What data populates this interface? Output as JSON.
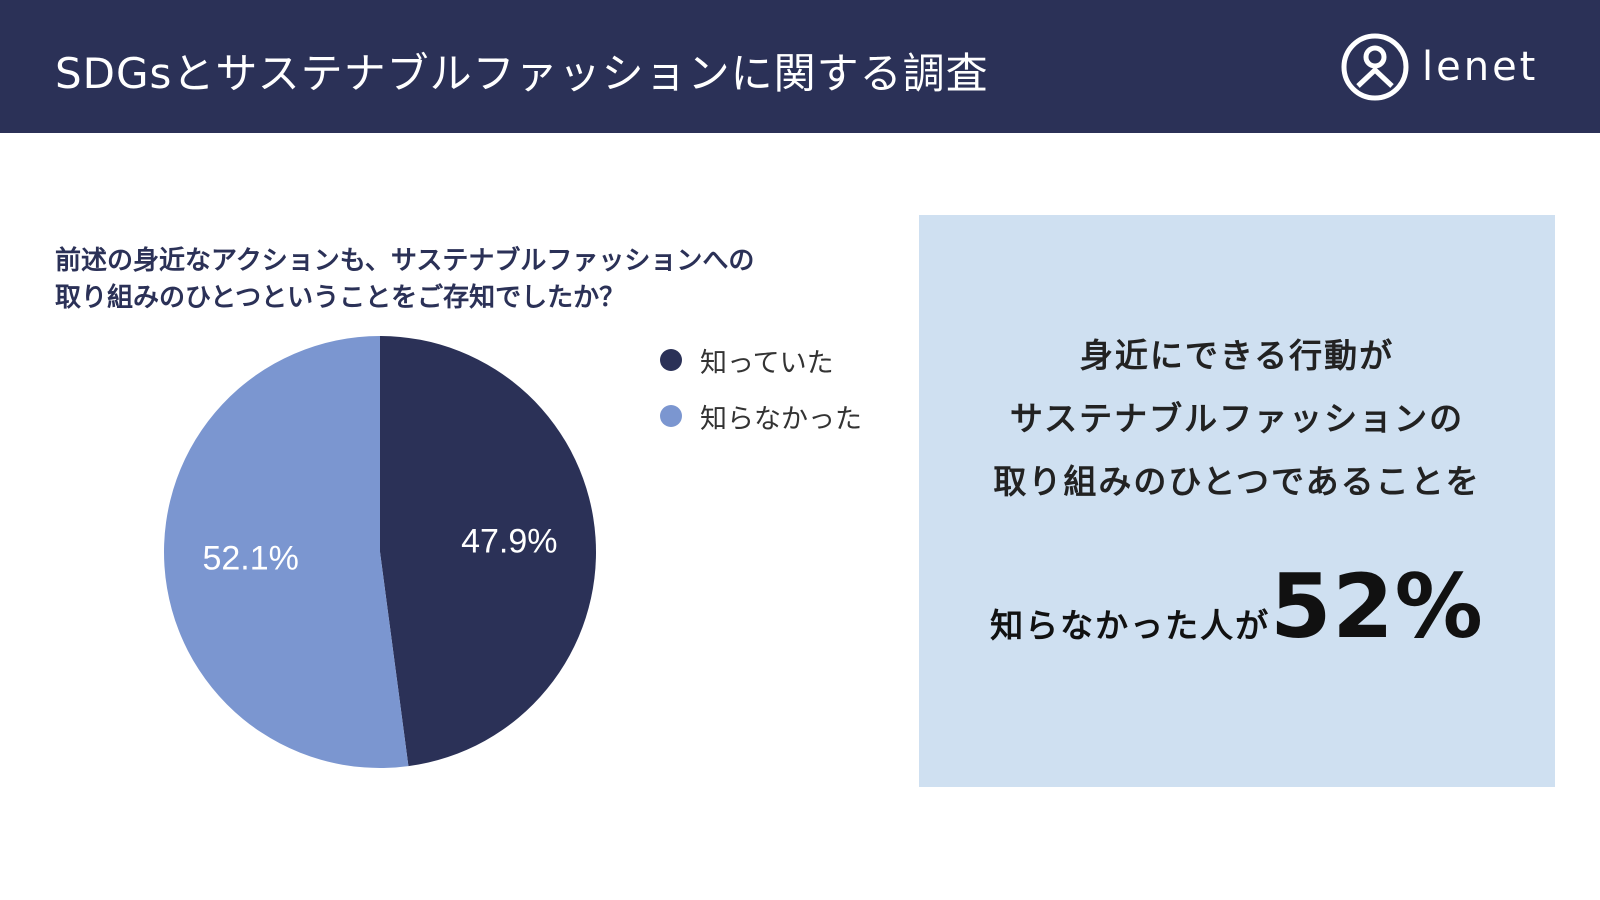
{
  "header": {
    "title": "SDGsとサステナブルファッションに関する調査",
    "logo_text": "lenet",
    "background_color": "#2b3157"
  },
  "question": {
    "line1": "前述の身近なアクションも、サステナブルファッションへの",
    "line2": "取り組みのひとつということをご存知でしたか？"
  },
  "chart_data": {
    "type": "pie",
    "title": "前述の身近なアクションも、サステナブルファッションへの取り組みのひとつということをご存知でしたか？",
    "categories": [
      "知っていた",
      "知らなかった"
    ],
    "values": [
      47.9,
      52.1
    ],
    "data_labels": [
      "47.9%",
      "52.1%"
    ],
    "colors": [
      "#2b3157",
      "#7b96d0"
    ],
    "legend_position": "right"
  },
  "legend": {
    "items": [
      {
        "label": "知っていた",
        "color": "#2b3157"
      },
      {
        "label": "知らなかった",
        "color": "#7b96d0"
      }
    ]
  },
  "callout": {
    "line1": "身近にできる行動が",
    "line2": "サステナブルファッションの",
    "line3": "取り組みのひとつであることを",
    "prefix": "知らなかった人が",
    "highlight": "52%",
    "background_color": "#cfe0f1"
  }
}
